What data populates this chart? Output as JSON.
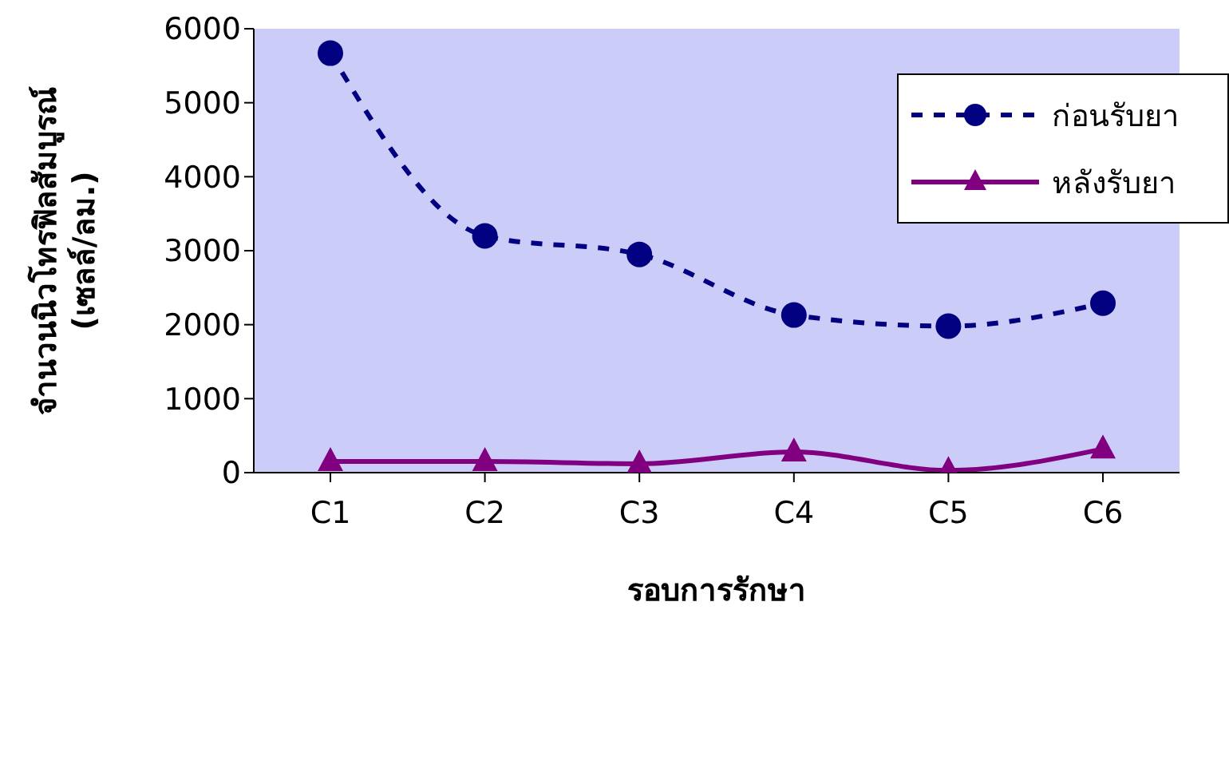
{
  "chart_data": {
    "type": "line",
    "xlabel": "รอบการรักษา",
    "ylabel": "จำนวนนิวโทรฟิลสัมบูรณ์\n(เซลล์/ลม.)",
    "categories": [
      "C1",
      "C2",
      "C3",
      "C4",
      "C5",
      "C6"
    ],
    "series": [
      {
        "name": "ก่อนรับยา",
        "color": "#000080",
        "values": [
          5670,
          3200,
          2950,
          2130,
          1980,
          2290
        ],
        "marker": "circle",
        "line_style": "dashed"
      },
      {
        "name": "หลังรับยา",
        "color": "#800080",
        "values": [
          150,
          150,
          120,
          280,
          30,
          320
        ],
        "marker": "triangle",
        "line_style": "solid"
      }
    ],
    "ylim": [
      0,
      6000
    ],
    "yticks": [
      0,
      1000,
      2000,
      3000,
      4000,
      5000,
      6000
    ],
    "grid": false,
    "legend": "top right"
  }
}
